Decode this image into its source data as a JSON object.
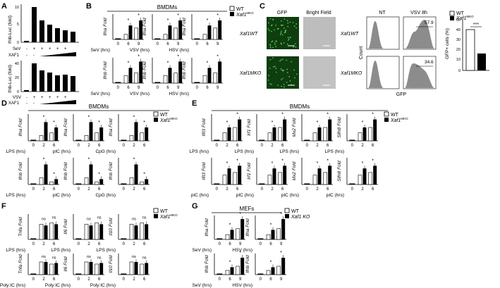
{
  "colors": {
    "black": "#000000",
    "white": "#ffffff",
    "micro": "#1f8a1f",
    "bf": "#b9b9b9",
    "hist": "#8c8c8c"
  },
  "legend": {
    "wt": "WT",
    "mko_base": "Xaf1",
    "mko_sup": "MKO",
    "ko": "Xaf1 KO"
  },
  "panels": {
    "A": {
      "letter": "A",
      "ylabel_top": "Ifnb-Luc (fold)",
      "ylabel_bottom": "Ifnb-Luc (fold)",
      "row1_top": [
        "SeV",
        "-",
        "+",
        "+",
        "+",
        "+",
        "+"
      ],
      "row2_top": [
        "XAF1",
        "-",
        "-"
      ],
      "row1_bot": [
        "VSV",
        "-",
        "+",
        "+",
        "+",
        "+",
        "+"
      ],
      "row2_bot": [
        "XAF1",
        "-",
        "-"
      ],
      "ticks_top": [
        "10",
        "5",
        "0"
      ],
      "ticks_bot": [
        "40",
        "20",
        "0"
      ]
    },
    "B": {
      "letter": "B",
      "title": "BMDMs",
      "ylabels_top": [
        "Ifna Fold",
        "Ifna Fold",
        "Ifna Fold"
      ],
      "ylabels_bot": [
        "Ifnb Fold",
        "Ifnb Fold",
        "Ifnb Fold"
      ],
      "xlabels": [
        "SeV (hrs)",
        "VSV (hrs)",
        "HSV (hrs)"
      ],
      "xticks": [
        "0",
        "6",
        "9"
      ]
    },
    "C": {
      "letter": "C",
      "gfp": "GFP",
      "bf": "Bright Field",
      "nt": "NT",
      "vsv": "VSV 8h",
      "wt_label": "Xaf1WT",
      "mko_label": "Xaf1MKO",
      "count": "Count",
      "gfp_axis": "GFP",
      "pct_wt": "57.9",
      "pct_mko": "34.6",
      "bar_ylabel": "GFP+ cells (%)",
      "sig": "***",
      "bar_ticks": [
        "50",
        "40",
        "30",
        "20",
        "10",
        "0"
      ]
    },
    "D": {
      "letter": "D",
      "title": "BMDMs",
      "ylabels_top": [
        "Ifna Fold",
        "Ifna Fold",
        "Ifna Fold"
      ],
      "ylabels_bot": [
        "Ifnb Fold",
        "Ifnb Fold",
        "Ifnb Fold"
      ],
      "xlabels": [
        "LPS (hrs)",
        "pIC (hrs)",
        "CpG (hrs)"
      ],
      "xticks": [
        "0",
        "2",
        "6"
      ]
    },
    "E": {
      "letter": "E",
      "title": "BMDMs",
      "ylabels": [
        "Ifit3 Fold",
        "Irf1 Fold",
        "Mx2 Fold",
        "Slfn8 Fold"
      ],
      "xlabels": [
        "LPS (hrs)",
        "pIC (hrs)"
      ],
      "xticks": [
        "0",
        "2",
        "6"
      ]
    },
    "F": {
      "letter": "F",
      "ylabels": [
        "Tnfa Fold",
        "Il6 Fold",
        "Il10 Fold"
      ],
      "xlabels": [
        "LPS (hrs)",
        "Poly:IC (hrs)"
      ],
      "xticks": [
        "0",
        "2",
        "6"
      ],
      "ns": "ns"
    },
    "G": {
      "letter": "G",
      "title": "MEFs",
      "ylabels_top": [
        "Ifna Fold",
        "Ifna Fold"
      ],
      "ylabels_bot": [
        "Ifnb Fold",
        "Ifnb Fold"
      ],
      "xlabels": [
        "SeV (hrs)",
        "HSV (hrs)"
      ],
      "xticks": [
        "0",
        "6",
        "9"
      ]
    }
  }
}
